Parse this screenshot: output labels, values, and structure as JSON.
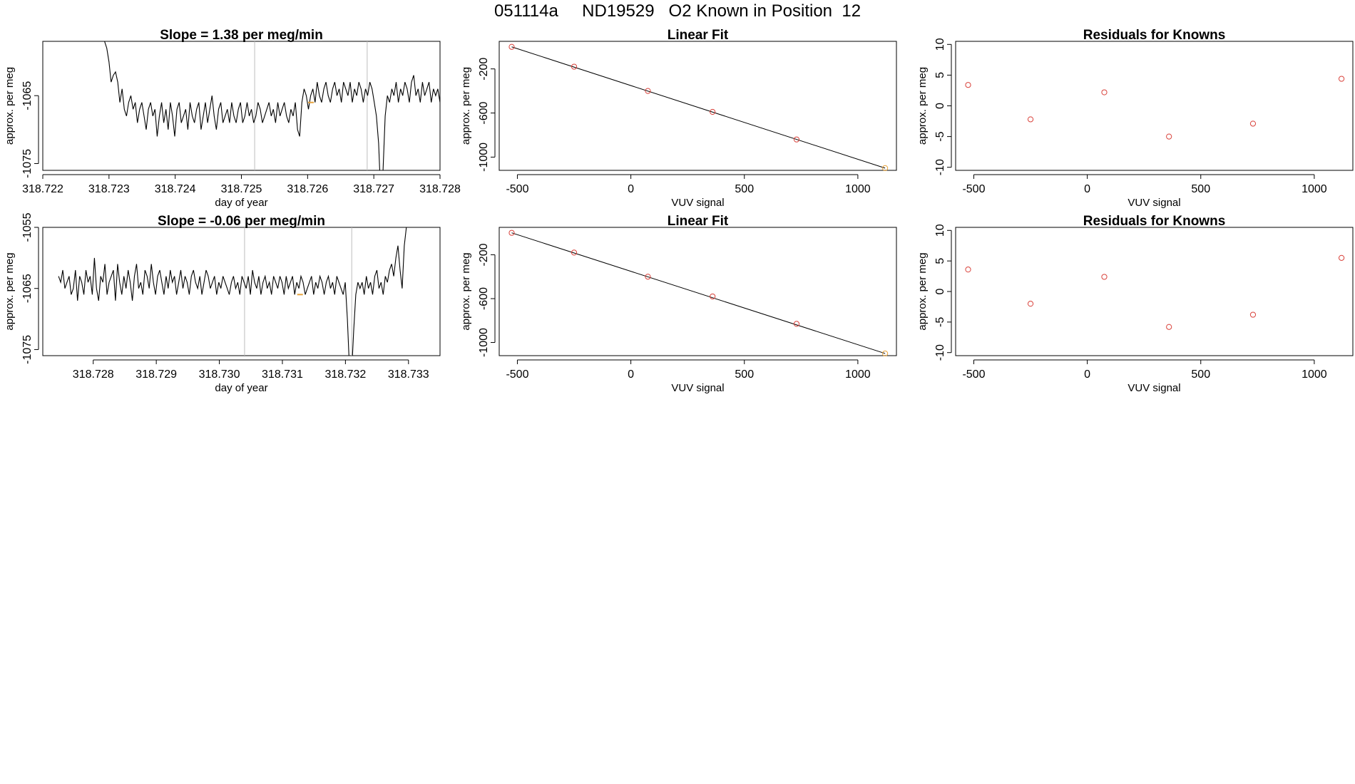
{
  "figure": {
    "title": "051114a     ND19529   O2 Known in Position  12"
  },
  "colors": {
    "trace": "#000000",
    "vline": "#bdbdbd",
    "point": "#d9413a",
    "highlight": "#e8a33c",
    "axis": "#000000"
  },
  "chart_data": [
    {
      "type": "line",
      "title": "Slope =  1.38  per meg/min",
      "xlabel": "day of year",
      "ylabel": "approx. per meg",
      "xlim": [
        318.722,
        318.728
      ],
      "ylim": [
        -1076,
        -1057
      ],
      "xticks": [
        "318.722",
        "318.723",
        "318.724",
        "318.725",
        "318.726",
        "318.727",
        "318.728"
      ],
      "yticks": [
        "-1075",
        "-1065"
      ],
      "ytick_values": [
        -1075,
        -1065
      ],
      "vlines": [
        318.7252,
        318.7269
      ],
      "highlight_point": [
        318.72605,
        -1066
      ],
      "series": [
        {
          "x_start": 318.7229,
          "x_end": 318.728,
          "values": [
            -1055,
            -1057,
            -1058,
            -1060,
            -1063,
            -1062,
            -1061.5,
            -1063,
            -1066,
            -1064,
            -1067,
            -1068,
            -1066,
            -1065,
            -1067,
            -1066,
            -1069,
            -1067,
            -1066,
            -1068,
            -1070,
            -1067,
            -1066,
            -1068,
            -1067,
            -1071,
            -1068,
            -1066,
            -1069,
            -1067,
            -1070,
            -1066,
            -1068,
            -1071,
            -1067,
            -1066,
            -1069,
            -1068,
            -1067,
            -1070,
            -1066,
            -1068,
            -1069,
            -1067,
            -1066,
            -1070,
            -1068,
            -1066,
            -1069,
            -1067,
            -1065,
            -1068,
            -1070,
            -1067,
            -1066,
            -1069,
            -1068,
            -1067,
            -1069,
            -1066,
            -1068,
            -1069,
            -1067,
            -1066,
            -1069,
            -1068,
            -1066,
            -1068,
            -1067,
            -1069,
            -1068,
            -1066,
            -1067,
            -1069,
            -1068,
            -1067,
            -1066,
            -1068,
            -1067,
            -1069,
            -1066,
            -1068,
            -1067,
            -1066,
            -1068,
            -1069,
            -1067,
            -1068,
            -1066,
            -1070,
            -1071,
            -1066,
            -1064,
            -1065,
            -1067,
            -1065,
            -1064,
            -1066,
            -1063,
            -1065,
            -1066,
            -1064,
            -1063,
            -1065,
            -1066,
            -1064,
            -1063,
            -1065,
            -1064,
            -1066,
            -1063,
            -1064,
            -1065,
            -1063,
            -1066,
            -1064,
            -1065,
            -1063,
            -1064,
            -1066,
            -1064,
            -1065,
            -1063,
            -1064,
            -1066,
            -1068,
            -1072,
            -1080,
            -1076,
            -1068,
            -1065,
            -1066,
            -1064,
            -1065,
            -1063,
            -1066,
            -1064,
            -1065,
            -1063,
            -1064,
            -1066,
            -1063,
            -1062,
            -1065,
            -1064,
            -1066,
            -1063,
            -1065,
            -1064,
            -1063,
            -1066,
            -1064,
            -1065,
            -1064,
            -1066
          ]
        }
      ]
    },
    {
      "type": "scatter",
      "title": "Linear Fit",
      "xlabel": "VUV signal",
      "ylabel": "approx. per meg",
      "xlim": [
        -580,
        1170
      ],
      "ylim": [
        -1120,
        50
      ],
      "xticks": [
        "-500",
        "0",
        "500",
        "1000"
      ],
      "xtick_values": [
        -500,
        0,
        500,
        1000
      ],
      "yticks": [
        "-1000",
        "-600",
        "-200"
      ],
      "ytick_values": [
        -1000,
        -600,
        -200
      ],
      "points": [
        [
          -525,
          0
        ],
        [
          -250,
          -180
        ],
        [
          75,
          -400
        ],
        [
          360,
          -590
        ],
        [
          730,
          -840
        ],
        [
          1120,
          -1100
        ]
      ],
      "highlight_index": 5,
      "fit_line": [
        [
          -525,
          0
        ],
        [
          1120,
          -1100
        ]
      ]
    },
    {
      "type": "scatter",
      "title": "Residuals for Knowns",
      "xlabel": "VUV signal",
      "ylabel": "approx. per meg",
      "xlim": [
        -580,
        1170
      ],
      "ylim": [
        -10.5,
        10.5
      ],
      "xticks": [
        "-500",
        "0",
        "500",
        "1000"
      ],
      "xtick_values": [
        -500,
        0,
        500,
        1000
      ],
      "yticks": [
        "-10",
        "-5",
        "0",
        "5",
        "10"
      ],
      "ytick_values": [
        -10,
        -5,
        0,
        5,
        10
      ],
      "points": [
        [
          -525,
          3.4
        ],
        [
          -250,
          -2.2
        ],
        [
          75,
          2.2
        ],
        [
          360,
          -5.0
        ],
        [
          730,
          -2.9
        ],
        [
          1120,
          4.4
        ]
      ]
    },
    {
      "type": "line",
      "title": "Slope =  -0.06  per meg/min",
      "xlabel": "day of year",
      "ylabel": "approx. per meg",
      "xlim": [
        318.7272,
        318.7335
      ],
      "ylim": [
        -1076,
        -1055
      ],
      "xticks": [
        "318.728",
        "318.729",
        "318.730",
        "318.731",
        "318.732",
        "318.733"
      ],
      "xtick_values": [
        318.728,
        318.729,
        318.73,
        318.731,
        318.732,
        318.733
      ],
      "yticks": [
        "-1075",
        "-1065",
        "-1055"
      ],
      "ytick_values": [
        -1075,
        -1065,
        -1055
      ],
      "vlines": [
        318.7304,
        318.7321
      ],
      "highlight_point": [
        318.73128,
        -1066
      ],
      "series": [
        {
          "x_start": 318.72745,
          "x_end": 318.733,
          "values": [
            -1063,
            -1064,
            -1062,
            -1065,
            -1064,
            -1063,
            -1066,
            -1065,
            -1062,
            -1067,
            -1063,
            -1064,
            -1066,
            -1062,
            -1064,
            -1063,
            -1066,
            -1060,
            -1065,
            -1067,
            -1063,
            -1064,
            -1061,
            -1066,
            -1064,
            -1063,
            -1062,
            -1067,
            -1061,
            -1064,
            -1066,
            -1063,
            -1065,
            -1062,
            -1064,
            -1067,
            -1063,
            -1061,
            -1065,
            -1064,
            -1066,
            -1062,
            -1063,
            -1065,
            -1061,
            -1064,
            -1066,
            -1063,
            -1062,
            -1064,
            -1066,
            -1063,
            -1065,
            -1062,
            -1064,
            -1063,
            -1066,
            -1064,
            -1062,
            -1065,
            -1063,
            -1064,
            -1066,
            -1063,
            -1062,
            -1064,
            -1065,
            -1063,
            -1066,
            -1064,
            -1062,
            -1063,
            -1065,
            -1064,
            -1063,
            -1066,
            -1064,
            -1065,
            -1063,
            -1064,
            -1065,
            -1066,
            -1064,
            -1063,
            -1065,
            -1064,
            -1066,
            -1063,
            -1064,
            -1065,
            -1063,
            -1066,
            -1062,
            -1064,
            -1065,
            -1063,
            -1066,
            -1064,
            -1063,
            -1065,
            -1064,
            -1066,
            -1063,
            -1064,
            -1065,
            -1063,
            -1064,
            -1066,
            -1063,
            -1065,
            -1064,
            -1063,
            -1066,
            -1064,
            -1065,
            -1063,
            -1064,
            -1066,
            -1065,
            -1064,
            -1063,
            -1066,
            -1064,
            -1065,
            -1063,
            -1064,
            -1066,
            -1064,
            -1063,
            -1065,
            -1064,
            -1066,
            -1063,
            -1064,
            -1065,
            -1066,
            -1064,
            -1070,
            -1078,
            -1079,
            -1072,
            -1066,
            -1064,
            -1065,
            -1064,
            -1066,
            -1063,
            -1065,
            -1064,
            -1066,
            -1063,
            -1062,
            -1065,
            -1064,
            -1066,
            -1063,
            -1064,
            -1062,
            -1061,
            -1063,
            -1060,
            -1058,
            -1062,
            -1065,
            -1058,
            -1055,
            -1048
          ]
        }
      ]
    },
    {
      "type": "scatter",
      "title": "Linear Fit",
      "xlabel": "VUV signal",
      "ylabel": "approx. per meg",
      "xlim": [
        -580,
        1170
      ],
      "ylim": [
        -1120,
        50
      ],
      "xticks": [
        "-500",
        "0",
        "500",
        "1000"
      ],
      "xtick_values": [
        -500,
        0,
        500,
        1000
      ],
      "yticks": [
        "-1000",
        "-600",
        "-200"
      ],
      "ytick_values": [
        -1000,
        -600,
        -200
      ],
      "points": [
        [
          -525,
          0
        ],
        [
          -250,
          -180
        ],
        [
          75,
          -400
        ],
        [
          360,
          -580
        ],
        [
          730,
          -830
        ],
        [
          1120,
          -1100
        ]
      ],
      "highlight_index": 5,
      "fit_line": [
        [
          -525,
          0
        ],
        [
          1120,
          -1100
        ]
      ]
    },
    {
      "type": "scatter",
      "title": "Residuals for Knowns",
      "xlabel": "VUV signal",
      "ylabel": "approx. per meg",
      "xlim": [
        -580,
        1170
      ],
      "ylim": [
        -10.5,
        10.5
      ],
      "xticks": [
        "-500",
        "0",
        "500",
        "1000"
      ],
      "xtick_values": [
        -500,
        0,
        500,
        1000
      ],
      "yticks": [
        "-10",
        "-5",
        "0",
        "5",
        "10"
      ],
      "ytick_values": [
        -10,
        -5,
        0,
        5,
        10
      ],
      "points": [
        [
          -525,
          3.6
        ],
        [
          -250,
          -2.0
        ],
        [
          75,
          2.4
        ],
        [
          360,
          -5.8
        ],
        [
          730,
          -3.8
        ],
        [
          1120,
          5.5
        ]
      ]
    }
  ]
}
